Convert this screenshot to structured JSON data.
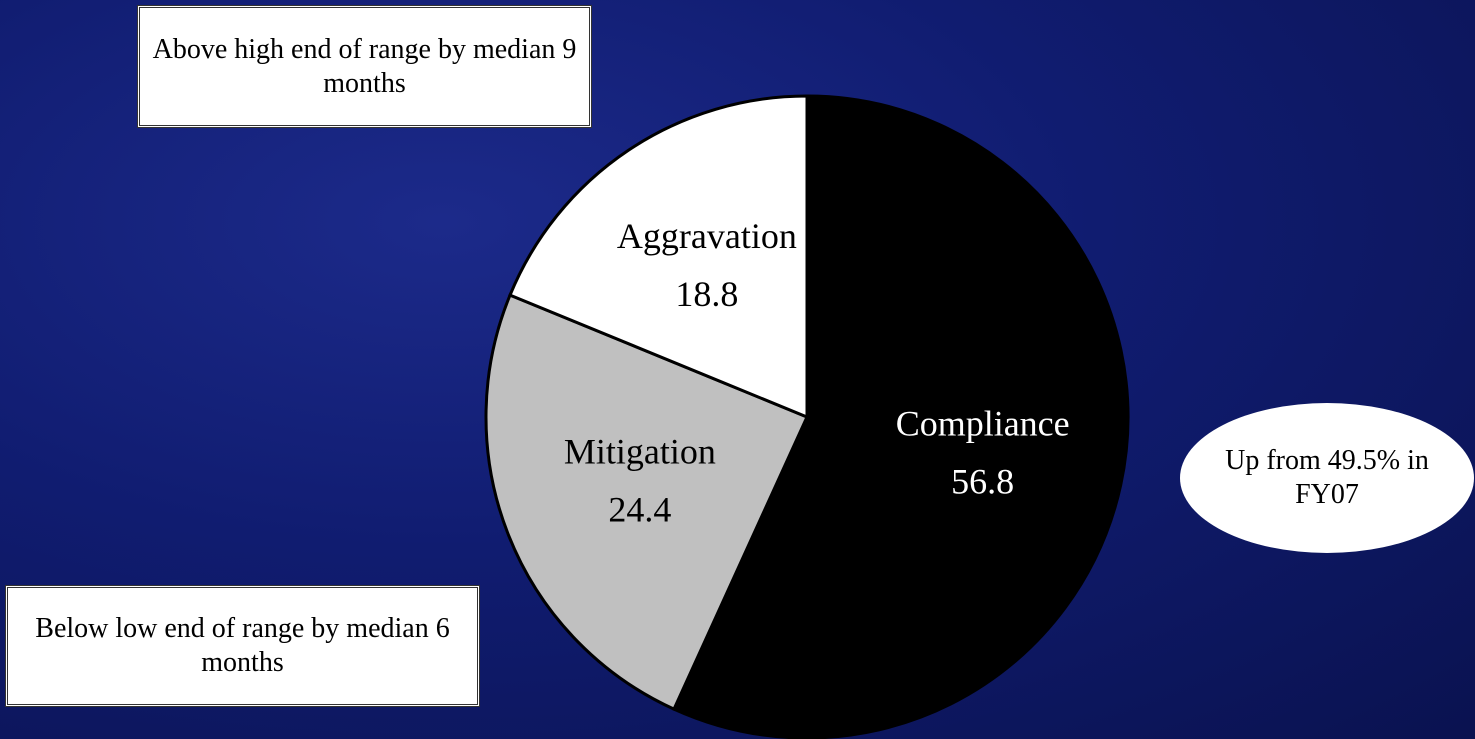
{
  "chart_data": {
    "type": "pie",
    "categories": [
      "Compliance",
      "Mitigation",
      "Aggravation"
    ],
    "values": [
      56.8,
      24.4,
      18.8
    ],
    "colors": [
      "#000000",
      "#c0c0c0",
      "#ffffff"
    ],
    "label_colors": [
      "#ffffff",
      "#000000",
      "#000000"
    ],
    "annotations": [
      "Above high end of range by median 9 months",
      "Below low end of range by median 6 months",
      "Up from 49.5% in FY07"
    ]
  }
}
